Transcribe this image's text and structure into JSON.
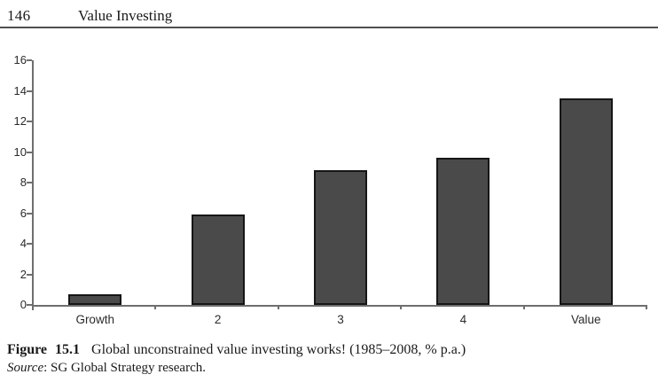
{
  "page": {
    "page_number": "146",
    "running_title": "Value Investing"
  },
  "caption": {
    "figure_label": "Figure 15.1",
    "figure_title": "Global unconstrained value investing works! (1985–2008, % p.a.)",
    "source_label": "Source",
    "source_text": ": SG Global Strategy research."
  },
  "chart_data": {
    "type": "bar",
    "title": "",
    "xlabel": "",
    "ylabel": "",
    "categories": [
      "Growth",
      "2",
      "3",
      "4",
      "Value"
    ],
    "values": [
      0.7,
      5.9,
      8.8,
      9.6,
      13.5
    ],
    "ylim": [
      0,
      16
    ],
    "yticks": [
      0,
      2,
      4,
      6,
      8,
      10,
      12,
      14,
      16
    ],
    "grid": false,
    "legend": false,
    "bar_color": "#4a4a4a",
    "bar_border_color": "#161616",
    "axis_color": "#6e6e6e"
  }
}
